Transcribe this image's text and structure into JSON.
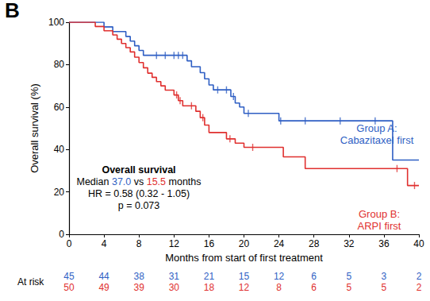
{
  "chart_data": {
    "type": "line",
    "panel": "B",
    "x_label": "Months from start of first treatment",
    "y_label": "Overall survival (%)",
    "xlim": [
      0,
      40
    ],
    "xticks": [
      0,
      4,
      8,
      12,
      16,
      20,
      24,
      28,
      32,
      36,
      40
    ],
    "ylim": [
      0,
      100
    ],
    "yticks": [
      0,
      20,
      40,
      60,
      80,
      100
    ],
    "grid": false,
    "line_style": "step",
    "annotation": {
      "title": "Overall survival",
      "median_prefix": "Median",
      "median_values": [
        "37.0",
        "15.5"
      ],
      "median_joiner": "vs",
      "median_suffix": "months",
      "hr": "HR = 0.58 (0.32 - 1.05)",
      "p": "p = 0.073"
    },
    "at_risk_label": "At risk",
    "series": [
      {
        "name": "Group A:\nCabazitaxel first",
        "color": "#2f5fc4",
        "marker": "vline",
        "x": [
          0,
          4,
          5,
          6.5,
          7,
          7.5,
          8,
          8.5,
          13.5,
          14,
          15,
          15.5,
          16,
          16.5,
          18.5,
          19,
          19.5,
          20,
          24,
          37,
          40
        ],
        "values": [
          100,
          97.8,
          95.6,
          93.3,
          91.1,
          88.9,
          86.7,
          84.4,
          81.8,
          79,
          76.2,
          73.3,
          70.4,
          68.1,
          65,
          61.9,
          60,
          57,
          53.5,
          35,
          35
        ],
        "censored_x": [
          10,
          11,
          12,
          12.5,
          13,
          17,
          18,
          18.8,
          20.5,
          24.2,
          27,
          31,
          35
        ],
        "censored_y": [
          84.4,
          84.4,
          84.4,
          84.4,
          84.4,
          68.1,
          68.1,
          65,
          57,
          53.5,
          53.5,
          53.5,
          53.5
        ],
        "at_risk": [
          45,
          44,
          38,
          31,
          21,
          15,
          12,
          6,
          5,
          3,
          2
        ]
      },
      {
        "name": "Group B:\nARPI first",
        "color": "#e0302f",
        "marker": "vline",
        "x": [
          0,
          3,
          4,
          5,
          5.5,
          6,
          6.5,
          7,
          7.5,
          8,
          8.5,
          9,
          9.5,
          10,
          10.5,
          11,
          12,
          12.5,
          13,
          14.5,
          15,
          15.5,
          16,
          18,
          19,
          20,
          24.5,
          27,
          38.7,
          40
        ],
        "values": [
          100,
          98,
          96,
          94,
          92,
          90,
          88,
          86,
          83.5,
          81,
          78.5,
          76,
          74,
          72,
          70,
          68,
          65.7,
          63,
          60.6,
          58,
          55,
          51.5,
          48,
          45,
          43,
          41,
          36.5,
          31,
          23,
          23
        ],
        "censored_x": [
          12.3,
          12.7,
          14,
          15.3,
          18.4,
          21,
          37.5,
          39.5
        ],
        "censored_y": [
          65.7,
          63,
          60.6,
          55,
          45,
          41,
          31,
          23
        ],
        "at_risk": [
          50,
          49,
          39,
          30,
          18,
          12,
          8,
          6,
          5,
          5,
          2
        ]
      }
    ]
  }
}
